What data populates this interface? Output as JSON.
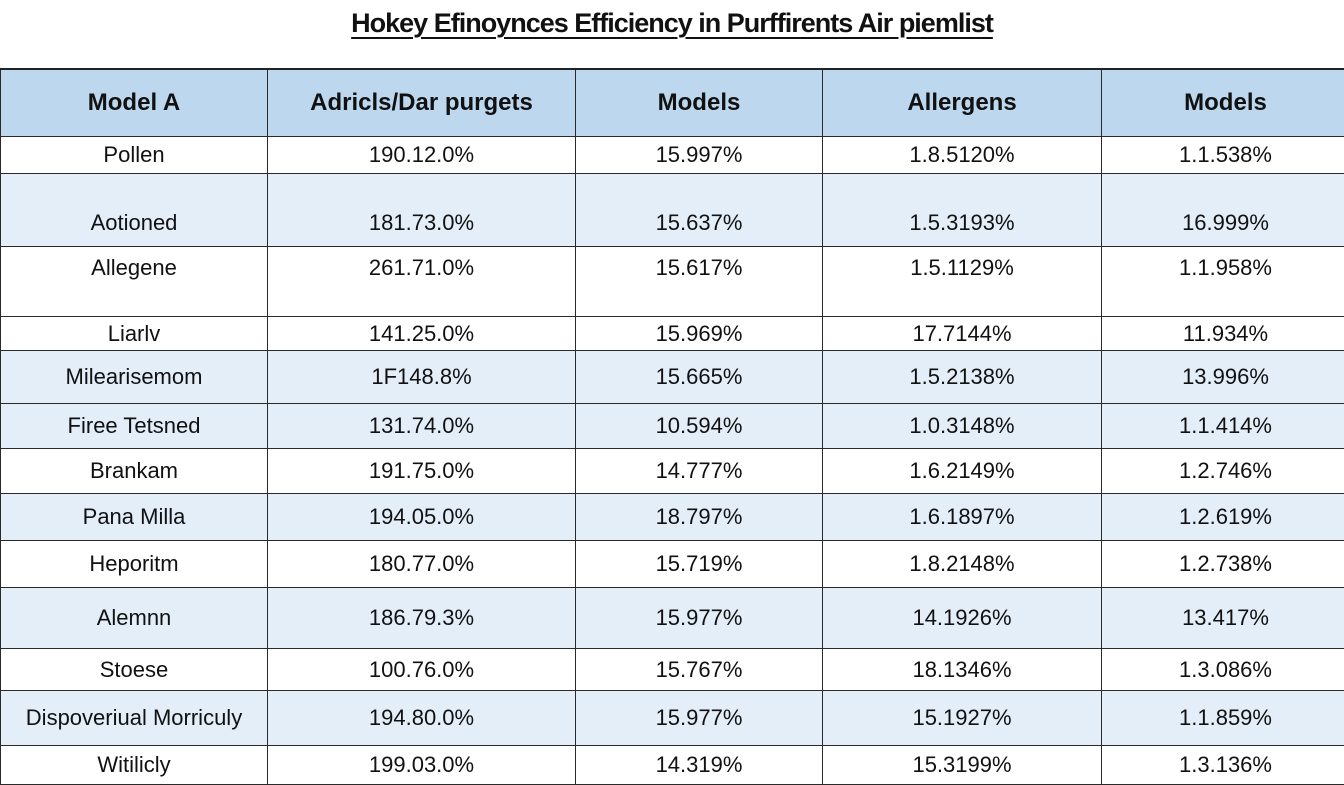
{
  "title": "Hokey Efinoynces Efficiency in Purffirents Air piemlist",
  "table": {
    "headers": [
      "Model A",
      "Adricls/Dar purgets",
      "Models",
      "Allergens",
      "Models"
    ],
    "rows": [
      [
        "Pollen",
        "190.12.0%",
        "15.997%",
        "1.8.5120%",
        "1.1.538%"
      ],
      [
        "Aotioned",
        "181.73.0%",
        "15.637%",
        "1.5.3193%",
        "16.999%"
      ],
      [
        "Allegene",
        "261.71.0%",
        "15.617%",
        "1.5.1129%",
        "1.1.958%"
      ],
      [
        "Liarlv",
        "141.25.0%",
        "15.969%",
        "17.7144%",
        "11.934%"
      ],
      [
        "Milearisemom",
        "1F148.8%",
        "15.665%",
        "1.5.2138%",
        "13.996%"
      ],
      [
        "Firee Tetsned",
        "131.74.0%",
        "10.594%",
        "1.0.3148%",
        "1.1.414%"
      ],
      [
        "Brankam",
        "191.75.0%",
        "14.777%",
        "1.6.2149%",
        "1.2.746%"
      ],
      [
        "Pana Milla",
        "194.05.0%",
        "18.797%",
        "1.6.1897%",
        "1.2.619%"
      ],
      [
        "Heporitm",
        "180.77.0%",
        "15.719%",
        "1.8.2148%",
        "1.2.738%"
      ],
      [
        "Alemnn",
        "186.79.3%",
        "15.977%",
        "14.1926%",
        "13.417%"
      ],
      [
        "Stoese",
        "100.76.0%",
        "15.767%",
        "18.1346%",
        "1.3.086%"
      ],
      [
        "Dispoveriual Morriculy",
        "194.80.0%",
        "15.977%",
        "15.1927%",
        "1.1.859%"
      ],
      [
        "Witilicly",
        "199.03.0%",
        "14.319%",
        "15.3199%",
        "1.3.136%"
      ]
    ]
  },
  "colors": {
    "header_bg": "#bcd7ee",
    "stripe_bg": "#e3eef9",
    "border": "#2a2a2a"
  }
}
